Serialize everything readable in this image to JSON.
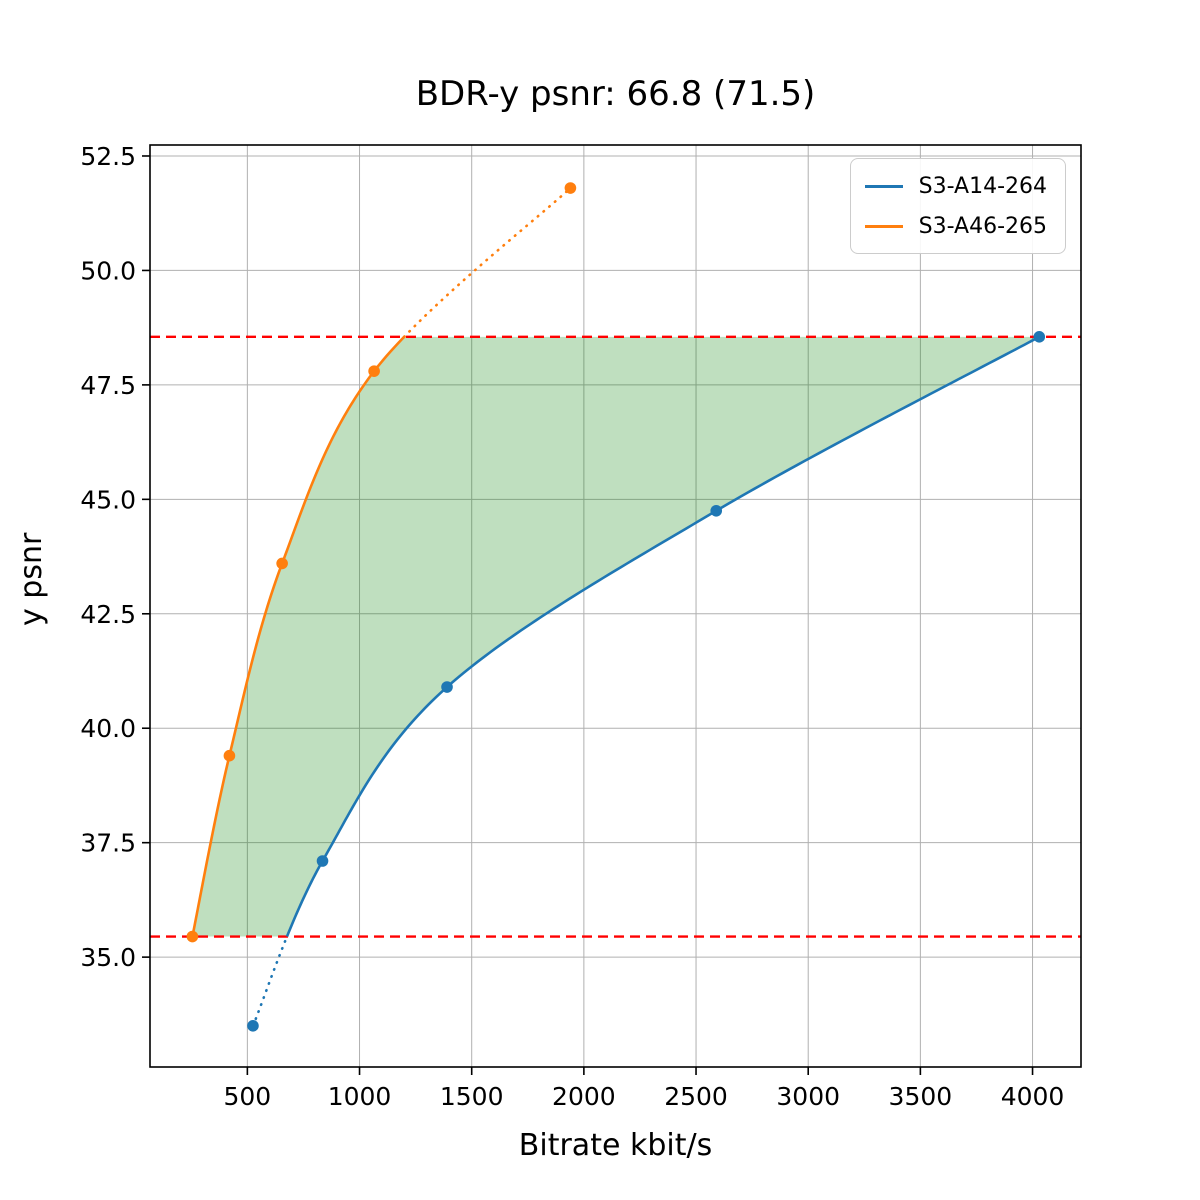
{
  "chart_data": {
    "type": "line",
    "title": "BDR-y psnr: 66.8 (71.5)",
    "xlabel": "Bitrate kbit/s",
    "ylabel": "y psnr",
    "xlim": [
      66,
      4216
    ],
    "ylim": [
      32.6,
      52.74
    ],
    "xticks": [
      500,
      1000,
      1500,
      2000,
      2500,
      3000,
      3500,
      4000
    ],
    "yticks": [
      35.0,
      37.5,
      40.0,
      42.5,
      45.0,
      47.5,
      50.0,
      52.5
    ],
    "grid": true,
    "grid_color": "#b0b0b0",
    "legend_position": "upper right",
    "series": [
      {
        "name": "S3-A14-264",
        "color": "#1f77b4",
        "x": [
          525,
          835,
          1390,
          2590,
          4030
        ],
        "y": [
          33.5,
          37.1,
          40.9,
          44.75,
          48.55
        ]
      },
      {
        "name": "S3-A46-265",
        "color": "#ff7f0e",
        "x": [
          255,
          420,
          655,
          1065,
          1940
        ],
        "y": [
          35.45,
          39.4,
          43.6,
          47.8,
          51.8
        ]
      }
    ],
    "hlines": [
      {
        "y": 48.55,
        "color": "#ff0000",
        "style": "dashed"
      },
      {
        "y": 35.45,
        "color": "#ff0000",
        "style": "dashed"
      }
    ],
    "shaded_region": {
      "between": "curves",
      "y_range": [
        35.45,
        48.55
      ],
      "color": "#008000",
      "alpha": 0.25
    },
    "style_note": "curves solid inside overlap band, dotted outside"
  }
}
